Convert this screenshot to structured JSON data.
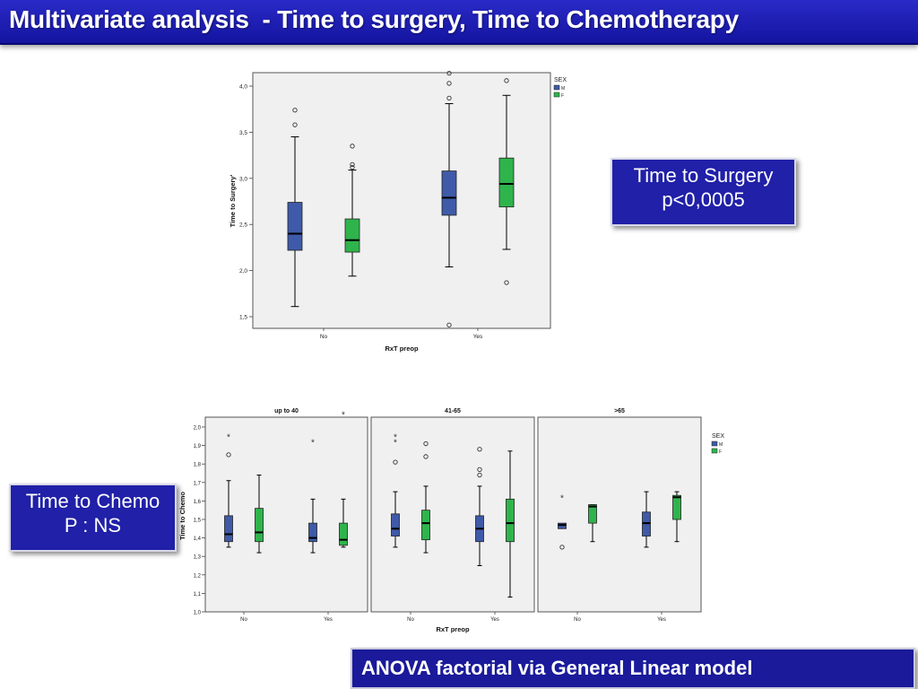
{
  "slide": {
    "title": "Multivariate analysis  - Time to surgery, Time to Chemotherapy",
    "callout_surgery": [
      "Time to Surgery",
      "p<0,0005"
    ],
    "callout_chemo": [
      "Time to Chemo",
      "P : NS"
    ],
    "footer": "ANOVA factorial via General Linear model"
  },
  "colors": {
    "M": "#3f5aa8",
    "F": "#2fb44c",
    "title_bg": "#1a1aa8"
  },
  "chart_data": [
    {
      "type": "boxplot",
      "xlabel": "RxT preop",
      "ylabel": "Time to Surgery'",
      "ylim": [
        1.5,
        4.0
      ],
      "yticks": [
        "1,5",
        "2,0",
        "2,5",
        "3,0",
        "3,5",
        "4,0"
      ],
      "categories": [
        "No",
        "Yes"
      ],
      "legend": {
        "title": "SEX",
        "entries": [
          "M",
          "F"
        ],
        "placement": "top-right"
      },
      "series": [
        {
          "name": "M",
          "color": "#3f5aa8",
          "boxes": [
            {
              "category": "No",
              "min": 1.61,
              "q1": 2.22,
              "median": 2.4,
              "q3": 2.74,
              "max": 3.45,
              "outliers": [
                3.58,
                3.74
              ],
              "extremes": []
            },
            {
              "category": "Yes",
              "min": 2.04,
              "q1": 2.6,
              "median": 2.79,
              "q3": 3.08,
              "max": 3.81,
              "outliers": [
                1.41,
                3.87,
                4.03,
                4.14
              ],
              "extremes": []
            }
          ]
        },
        {
          "name": "F",
          "color": "#2fb44c",
          "boxes": [
            {
              "category": "No",
              "min": 1.94,
              "q1": 2.2,
              "median": 2.33,
              "q3": 2.56,
              "max": 3.09,
              "outliers": [
                3.12,
                3.15,
                3.35
              ],
              "extremes": []
            },
            {
              "category": "Yes",
              "min": 2.23,
              "q1": 2.69,
              "median": 2.94,
              "q3": 3.22,
              "max": 3.9,
              "outliers": [
                1.87,
                4.06
              ],
              "extremes": []
            }
          ]
        }
      ]
    },
    {
      "type": "boxplot",
      "xlabel": "RxT preop",
      "ylabel": "Time to Chemo",
      "ylim": [
        1.0,
        2.0
      ],
      "yticks": [
        "1,0",
        "1,1",
        "1,2",
        "1,3",
        "1,4",
        "1,5",
        "1,6",
        "1,7",
        "1,8",
        "1,9",
        "2,0"
      ],
      "categories": [
        "No",
        "Yes"
      ],
      "legend": {
        "title": "SEX",
        "entries": [
          "M",
          "F"
        ],
        "placement": "right"
      },
      "panels": [
        {
          "title": "up to 40",
          "series": [
            {
              "name": "M",
              "boxes": [
                {
                  "category": "No",
                  "min": 1.35,
                  "q1": 1.38,
                  "median": 1.42,
                  "q3": 1.52,
                  "max": 1.71,
                  "outliers": [
                    1.85
                  ],
                  "extremes": [
                    1.95
                  ]
                },
                {
                  "category": "Yes",
                  "min": 1.32,
                  "q1": 1.38,
                  "median": 1.4,
                  "q3": 1.48,
                  "max": 1.61,
                  "outliers": [],
                  "extremes": [
                    1.92
                  ]
                }
              ]
            },
            {
              "name": "F",
              "boxes": [
                {
                  "category": "No",
                  "min": 1.32,
                  "q1": 1.38,
                  "median": 1.43,
                  "q3": 1.56,
                  "max": 1.74,
                  "outliers": [],
                  "extremes": []
                },
                {
                  "category": "Yes",
                  "min": 1.35,
                  "q1": 1.36,
                  "median": 1.39,
                  "q3": 1.48,
                  "max": 1.61,
                  "outliers": [],
                  "extremes": [
                    2.07
                  ]
                }
              ]
            }
          ]
        },
        {
          "title": "41-65",
          "series": [
            {
              "name": "M",
              "boxes": [
                {
                  "category": "No",
                  "min": 1.35,
                  "q1": 1.41,
                  "median": 1.45,
                  "q3": 1.53,
                  "max": 1.65,
                  "outliers": [
                    1.81
                  ],
                  "extremes": [
                    1.92,
                    1.95
                  ]
                },
                {
                  "category": "Yes",
                  "min": 1.25,
                  "q1": 1.38,
                  "median": 1.45,
                  "q3": 1.52,
                  "max": 1.68,
                  "outliers": [
                    1.74,
                    1.77,
                    1.88
                  ],
                  "extremes": []
                }
              ]
            },
            {
              "name": "F",
              "boxes": [
                {
                  "category": "No",
                  "min": 1.32,
                  "q1": 1.39,
                  "median": 1.48,
                  "q3": 1.55,
                  "max": 1.68,
                  "outliers": [
                    1.84,
                    1.91
                  ],
                  "extremes": []
                },
                {
                  "category": "Yes",
                  "min": 1.08,
                  "q1": 1.38,
                  "median": 1.48,
                  "q3": 1.61,
                  "max": 1.87,
                  "outliers": [],
                  "extremes": []
                }
              ]
            }
          ]
        },
        {
          "title": ">65",
          "series": [
            {
              "name": "M",
              "boxes": [
                {
                  "category": "No",
                  "min": null,
                  "q1": 1.45,
                  "median": 1.47,
                  "q3": 1.48,
                  "max": null,
                  "outliers": [
                    1.35
                  ],
                  "extremes": [
                    1.62
                  ]
                },
                {
                  "category": "Yes",
                  "min": 1.35,
                  "q1": 1.41,
                  "median": 1.48,
                  "q3": 1.54,
                  "max": 1.65,
                  "outliers": [],
                  "extremes": []
                }
              ]
            },
            {
              "name": "F",
              "boxes": [
                {
                  "category": "No",
                  "min": 1.38,
                  "q1": 1.48,
                  "median": 1.57,
                  "q3": 1.58,
                  "max": 1.58,
                  "outliers": [],
                  "extremes": []
                },
                {
                  "category": "Yes",
                  "min": 1.38,
                  "q1": 1.5,
                  "median": 1.62,
                  "q3": 1.63,
                  "max": 1.65,
                  "outliers": [],
                  "extremes": []
                }
              ]
            }
          ]
        }
      ]
    }
  ]
}
